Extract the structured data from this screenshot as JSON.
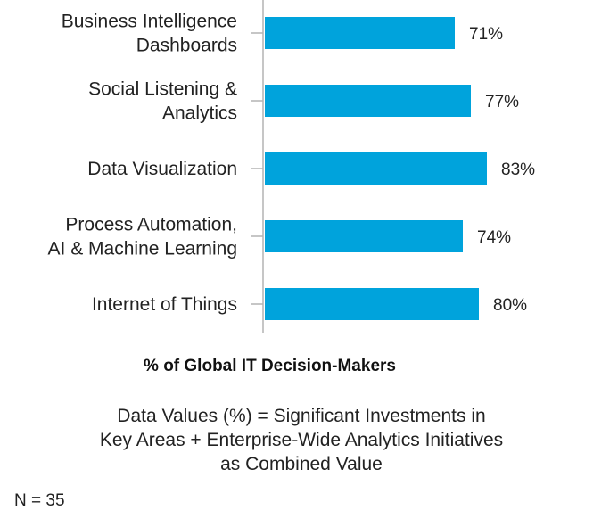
{
  "chart_data": {
    "type": "bar",
    "orientation": "horizontal",
    "categories": [
      [
        "Business Intelligence",
        "Dashboards"
      ],
      [
        "Social Listening &",
        "Analytics"
      ],
      [
        "Data Visualization"
      ],
      [
        "Process Automation,",
        "AI & Machine Learning"
      ],
      [
        "Internet of Things"
      ]
    ],
    "values": [
      71,
      77,
      83,
      74,
      80
    ],
    "value_labels": [
      "71%",
      "77%",
      "83%",
      "74%",
      "80%"
    ],
    "xlabel": "% of Global IT Decision-Makers",
    "bar_color": "#00a3dc",
    "grid": false,
    "legend": "none"
  },
  "note_lines": [
    "Data Values (%) = Significant Investments in",
    "Key Areas + Enterprise-Wide Analytics Initiatives",
    "as Combined Value"
  ],
  "sample_size": "N = 35"
}
